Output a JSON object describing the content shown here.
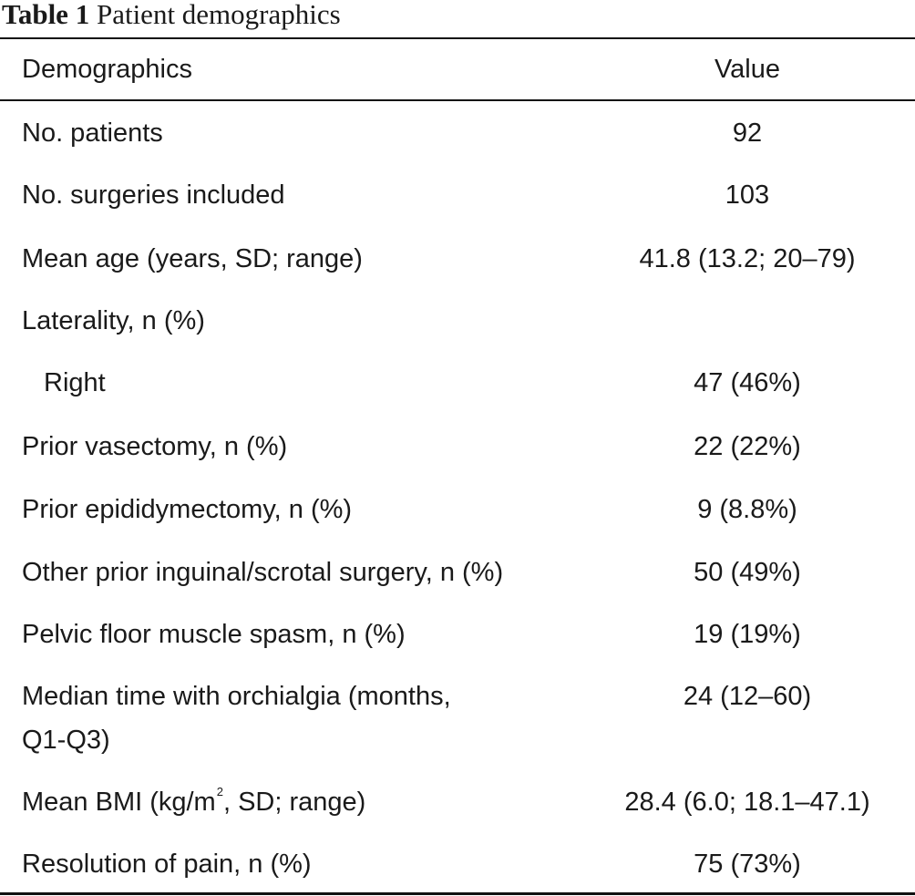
{
  "caption": {
    "label": "Table 1",
    "title": "Patient demographics"
  },
  "table": {
    "headers": {
      "col1": "Demographics",
      "col2": "Value"
    },
    "rows": [
      {
        "label": "No. patients",
        "value": "92"
      },
      {
        "label": "No. surgeries included",
        "value": "103"
      },
      {
        "label": "Mean age (years, SD; range)",
        "value": "41.8 (13.2; 20–79)"
      },
      {
        "label": "Laterality, n (%)",
        "value": ""
      },
      {
        "label": "Right",
        "value": "47 (46%)"
      },
      {
        "label": "Prior vasectomy, n (%)",
        "value": "22 (22%)"
      },
      {
        "label": "Prior epididymectomy, n (%)",
        "value": "9 (8.8%)"
      },
      {
        "label": "Other prior inguinal/scrotal surgery, n (%)",
        "value": "50 (49%)"
      },
      {
        "label": "Pelvic floor muscle spasm, n (%)",
        "value": "19 (19%)"
      },
      {
        "label_line1": "Median time with orchialgia (months,",
        "label_line2": "Q1-Q3)",
        "value": "24 (12–60)"
      },
      {
        "label_pre": "Mean BMI (kg/m",
        "label_sup": "2",
        "label_post": ", SD; range)",
        "value": "28.4 (6.0; 18.1–47.1)"
      },
      {
        "label": "Resolution of pain, n (%)",
        "value": "75 (73%)"
      }
    ]
  }
}
